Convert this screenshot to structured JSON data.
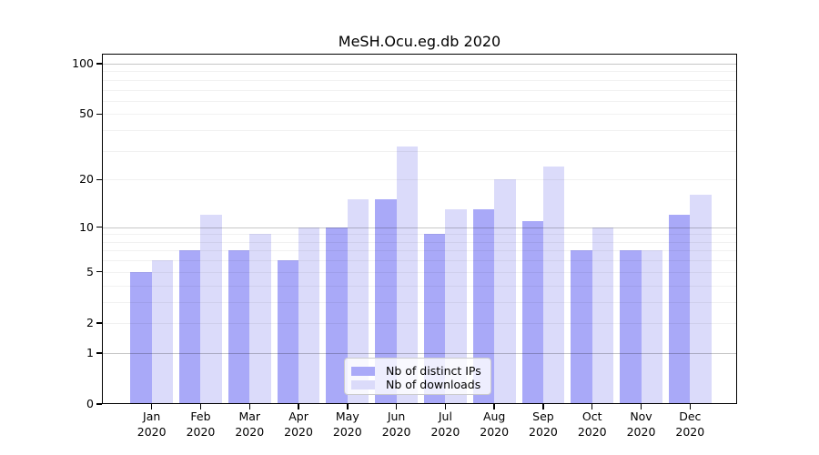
{
  "figure": {
    "title": "MeSH.Ocu.eg.db 2020",
    "background_color": "#ffffff"
  },
  "chart_data": {
    "type": "bar",
    "title": "MeSH.Ocu.eg.db 2020",
    "months": [
      "Jan",
      "Feb",
      "Mar",
      "Apr",
      "May",
      "Jun",
      "Jul",
      "Aug",
      "Sep",
      "Oct",
      "Nov",
      "Dec"
    ],
    "year": "2020",
    "series": [
      {
        "name": "Nb of distinct IPs",
        "color": "#a9a9f8",
        "values": [
          5,
          7,
          7,
          6,
          10,
          15,
          9,
          13,
          11,
          7,
          7,
          12
        ]
      },
      {
        "name": "Nb of downloads",
        "color": "#dbdbfa",
        "values": [
          6,
          12,
          9,
          10,
          15,
          32,
          13,
          20,
          24,
          10,
          7,
          16
        ]
      }
    ],
    "yscale": "log1p",
    "yticks": [
      0,
      1,
      2,
      5,
      10,
      20,
      50,
      100
    ],
    "ylim": [
      0,
      115
    ],
    "grid": true,
    "grid_minor_values": [
      2,
      3,
      4,
      5,
      6,
      7,
      8,
      9,
      20,
      30,
      40,
      50,
      60,
      70,
      80,
      90
    ],
    "grid_major_values": [
      1,
      10,
      100
    ],
    "legend_position": "lower-center",
    "axis_color": "#000000",
    "grid_minor_color": "rgba(0,0,0,0.055)",
    "grid_major_color": "rgba(0,0,0,0.22)"
  }
}
